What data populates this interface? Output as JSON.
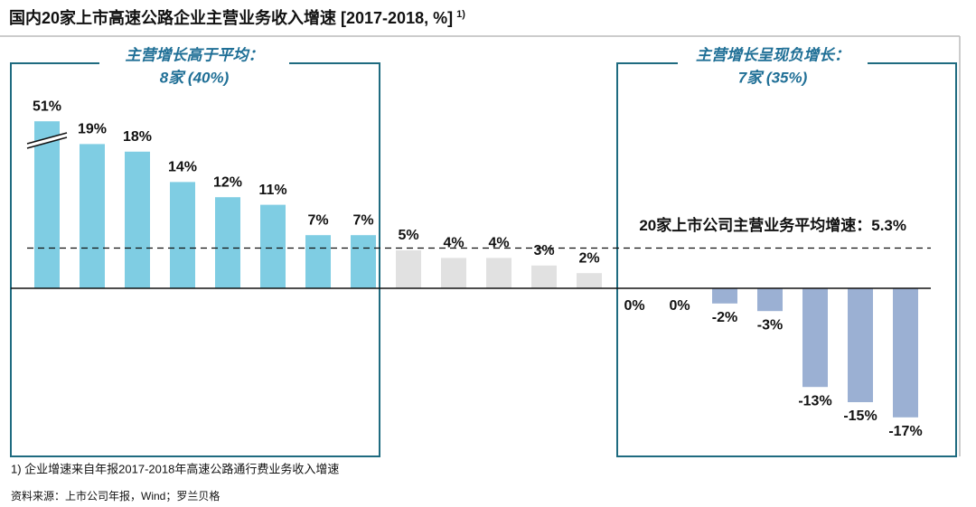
{
  "chart_data": {
    "type": "bar",
    "title": "国内20家上市高速公路企业主营业务收入增速 [2017-2018, %]",
    "title_note": "1)",
    "categories": [
      null,
      null,
      null,
      null,
      null,
      null,
      null,
      null,
      null,
      null,
      null,
      null,
      null,
      null,
      null,
      null,
      null,
      null,
      null,
      null
    ],
    "values": [
      51,
      19,
      18,
      14,
      12,
      11,
      7,
      7,
      5,
      4,
      4,
      3,
      2,
      0,
      0,
      -2,
      -3,
      -13,
      -15,
      -17
    ],
    "value_labels": [
      "51%",
      "19%",
      "18%",
      "14%",
      "12%",
      "11%",
      "7%",
      "7%",
      "5%",
      "4%",
      "4%",
      "3%",
      "2%",
      "0%",
      "0%",
      "-2%",
      "-3%",
      "-13%",
      "-15%",
      "-17%"
    ],
    "colors": [
      "#7fcde3",
      "#7fcde3",
      "#7fcde3",
      "#7fcde3",
      "#7fcde3",
      "#7fcde3",
      "#7fcde3",
      "#7fcde3",
      "#e1e1e1",
      "#e1e1e1",
      "#e1e1e1",
      "#e1e1e1",
      "#e1e1e1",
      "#9bb0d3",
      "#9bb0d3",
      "#9bb0d3",
      "#9bb0d3",
      "#9bb0d3",
      "#9bb0d3",
      "#9bb0d3"
    ],
    "ylim": [
      -20,
      26
    ],
    "axis_break": [
      20,
      49
    ],
    "average": 5.3,
    "average_label": "20家上市公司主营业务平均增速：5.3%",
    "groups": [
      {
        "title": "主营增长高于平均：",
        "subtitle": "8家 (40%)"
      },
      {
        "title": "主营增长呈现负增长：",
        "subtitle": "7家 (35%)"
      }
    ],
    "footnote": "1) 企业增速来自年报2017-2018年高速公路通行费业务收入增速",
    "source": "资料来源：上市公司年报，Wind；罗兰贝格"
  }
}
